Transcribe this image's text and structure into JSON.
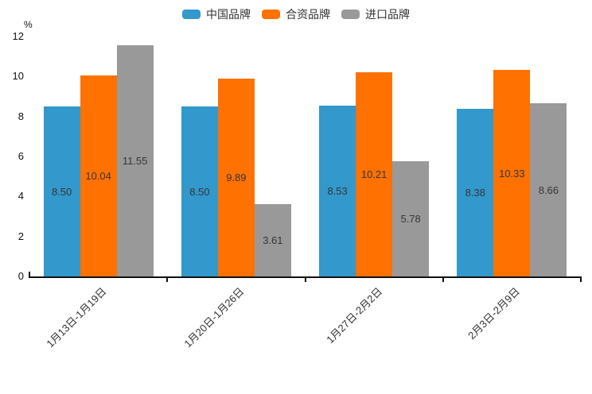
{
  "chart_data": {
    "type": "bar",
    "title": "",
    "ylabel": "%",
    "xlabel": "",
    "ylim": [
      0,
      12
    ],
    "yticks": [
      0,
      2,
      4,
      6,
      8,
      10,
      12
    ],
    "grid": false,
    "legend_position": "top",
    "value_label_decimals": 2,
    "categories": [
      "1月13日-1月19日",
      "1月20日-1月26日",
      "1月27日-2月2日",
      "2月3日-2月9日"
    ],
    "series": [
      {
        "name": "中国品牌",
        "color": "#3398CB",
        "values": [
          8.5,
          8.5,
          8.53,
          8.38
        ]
      },
      {
        "name": "合资品牌",
        "color": "#FF7100",
        "values": [
          10.04,
          9.89,
          10.21,
          10.33
        ]
      },
      {
        "name": "进口品牌",
        "color": "#999999",
        "values": [
          11.55,
          3.61,
          5.78,
          8.66
        ]
      }
    ],
    "axis_color": "#111111",
    "label_color": "#363636"
  }
}
